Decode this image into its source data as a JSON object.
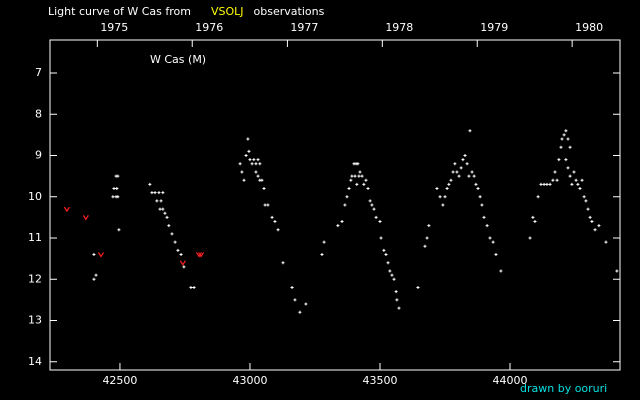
{
  "chart_data": {
    "type": "scatter",
    "title_parts": [
      {
        "text": "Light curve of W Cas from",
        "color": "#ffffff"
      },
      {
        "text": "VSOLJ",
        "color": "#ffff00"
      },
      {
        "text": "observations",
        "color": "#ffffff"
      }
    ],
    "annotation": "W Cas (M)",
    "credit": "drawn by ooruri",
    "xlim": [
      42231,
      44423
    ],
    "xticks": [
      42500,
      43000,
      43500,
      44000
    ],
    "x2ticks": [
      {
        "value": 42413,
        "label": "1975"
      },
      {
        "value": 42778,
        "label": "1976"
      },
      {
        "value": 43144,
        "label": "1977"
      },
      {
        "value": 43509,
        "label": "1978"
      },
      {
        "value": 43874,
        "label": "1979"
      },
      {
        "value": 44239,
        "label": "1980"
      }
    ],
    "ylim": [
      6.2,
      14.2
    ],
    "y_inverted": true,
    "yticks": [
      7,
      8,
      9,
      10,
      11,
      12,
      13,
      14
    ],
    "series": [
      {
        "color": "#ffffff",
        "marker": "dot",
        "x": [
          42400,
          42408,
          42400,
          42473,
          42477,
          42485,
          42492,
          42485,
          42492,
          42496,
          42488,
          42615,
          42623,
          42635,
          42642,
          42650,
          42658,
          42665,
          42654,
          42665,
          42673,
          42681,
          42688,
          42700,
          42712,
          42723,
          42735,
          42746,
          42773,
          42785,
          42962,
          42969,
          42977,
          42985,
          42992,
          42996,
          43000,
          43008,
          43015,
          43023,
          43031,
          43038,
          43023,
          43031,
          43038,
          43046,
          43054,
          43058,
          43069,
          43085,
          43096,
          43108,
          43127,
          43162,
          43173,
          43192,
          43215,
          43277,
          43285,
          43338,
          43354,
          43365,
          43373,
          43381,
          43388,
          43392,
          43400,
          43408,
          43415,
          43423,
          43404,
          43411,
          43419,
          43431,
          43438,
          43446,
          43454,
          43462,
          43469,
          43477,
          43485,
          43500,
          43504,
          43515,
          43523,
          43531,
          43538,
          43546,
          43554,
          43562,
          43565,
          43573,
          43646,
          43673,
          43681,
          43688,
          43719,
          43731,
          43742,
          43750,
          43758,
          43765,
          43773,
          43781,
          43788,
          43796,
          43804,
          43812,
          43819,
          43827,
          43835,
          43842,
          43846,
          43854,
          43862,
          43869,
          43877,
          43885,
          43892,
          43900,
          43912,
          43923,
          43935,
          43946,
          43965,
          44077,
          44088,
          44096,
          44108,
          44119,
          44131,
          44142,
          44154,
          44165,
          44173,
          44181,
          44188,
          44196,
          44200,
          44208,
          44215,
          44223,
          44231,
          44215,
          44223,
          44231,
          44238,
          44246,
          44254,
          44261,
          44269,
          44277,
          44285,
          44292,
          44300,
          44308,
          44315,
          44327,
          44342,
          44369,
          44411
        ],
        "values": [
          12.0,
          11.9,
          11.4,
          10.0,
          9.8,
          9.5,
          9.5,
          10.0,
          10.0,
          10.8,
          9.8,
          9.7,
          9.9,
          9.9,
          10.1,
          9.9,
          10.1,
          9.9,
          10.3,
          10.3,
          10.4,
          10.5,
          10.7,
          10.9,
          11.1,
          11.3,
          11.4,
          11.7,
          12.2,
          12.2,
          9.2,
          9.4,
          9.6,
          9.0,
          8.6,
          8.9,
          9.1,
          9.2,
          9.1,
          9.2,
          9.1,
          9.2,
          9.4,
          9.5,
          9.6,
          9.6,
          9.8,
          10.2,
          10.2,
          10.5,
          10.6,
          10.8,
          11.6,
          12.2,
          12.5,
          12.8,
          12.6,
          11.4,
          11.1,
          10.7,
          10.6,
          10.2,
          10.0,
          9.8,
          9.6,
          9.5,
          9.2,
          9.2,
          9.2,
          9.4,
          9.5,
          9.7,
          9.5,
          9.5,
          9.7,
          9.6,
          9.8,
          10.1,
          10.2,
          10.3,
          10.5,
          10.6,
          11.0,
          11.3,
          11.4,
          11.6,
          11.8,
          11.9,
          12.0,
          12.3,
          12.5,
          12.7,
          12.2,
          11.2,
          11.0,
          10.7,
          9.8,
          10.0,
          10.2,
          10.0,
          9.8,
          9.7,
          9.6,
          9.4,
          9.2,
          9.4,
          9.5,
          9.3,
          9.1,
          9.0,
          9.2,
          9.5,
          8.4,
          9.4,
          9.5,
          9.7,
          9.8,
          10.0,
          10.2,
          10.5,
          10.7,
          11.0,
          11.1,
          11.4,
          11.8,
          11.0,
          10.5,
          10.6,
          10.0,
          9.7,
          9.7,
          9.7,
          9.7,
          9.6,
          9.4,
          9.6,
          9.1,
          8.8,
          8.6,
          8.5,
          8.4,
          8.6,
          8.8,
          9.1,
          9.3,
          9.5,
          9.7,
          9.4,
          9.6,
          9.7,
          9.8,
          9.6,
          10.0,
          10.1,
          10.3,
          10.5,
          10.6,
          10.8,
          10.7,
          11.1,
          11.8
        ]
      },
      {
        "color": "#ff2020",
        "marker": "v",
        "x": [
          42296,
          42369,
          42427,
          42742,
          42804,
          42812
        ],
        "values": [
          10.3,
          10.5,
          11.4,
          11.6,
          11.4,
          11.4
        ]
      }
    ]
  }
}
